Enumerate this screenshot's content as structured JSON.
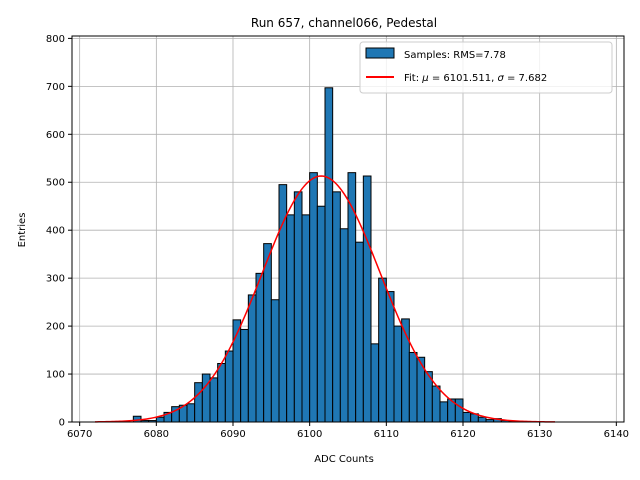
{
  "chart_data": {
    "type": "bar",
    "title": "Run 657, channel066, Pedestal",
    "xlabel": "ADC Counts",
    "ylabel": "Entries",
    "xlim": [
      6069,
      6141
    ],
    "ylim": [
      0,
      805
    ],
    "xticks": [
      6070,
      6080,
      6090,
      6100,
      6110,
      6120,
      6130,
      6140
    ],
    "yticks": [
      0,
      100,
      200,
      300,
      400,
      500,
      600,
      700,
      800
    ],
    "grid": true,
    "legend_position": "top-right",
    "bin_width": 1,
    "histogram": {
      "name": "Samples: RMS=7.78",
      "color": "#1f77b4",
      "bin_start": 6077,
      "counts": [
        12,
        3,
        3,
        10,
        20,
        32,
        35,
        38,
        82,
        100,
        92,
        122,
        148,
        213,
        193,
        265,
        310,
        372,
        255,
        495,
        432,
        480,
        432,
        520,
        450,
        697,
        480,
        403,
        520,
        375,
        513,
        163,
        300,
        272,
        200,
        215,
        145,
        135,
        105,
        75,
        42,
        48,
        48,
        20,
        17,
        10,
        5,
        7,
        3,
        2
      ]
    },
    "fit": {
      "name": "Fit: μ = 6101.511, σ = 7.682",
      "color": "#ff0000",
      "mu": 6101.511,
      "sigma": 7.682,
      "amplitude": 513,
      "x_range": [
        6072,
        6132
      ]
    }
  },
  "legend": {
    "hist_prefix": "Samples: RMS=7.78",
    "fit_prefix": "Fit: ",
    "fit_mu_symbol": "μ",
    "fit_mu_rest": " = 6101.511, ",
    "fit_sigma_symbol": "σ",
    "fit_sigma_rest": " = 7.682"
  }
}
